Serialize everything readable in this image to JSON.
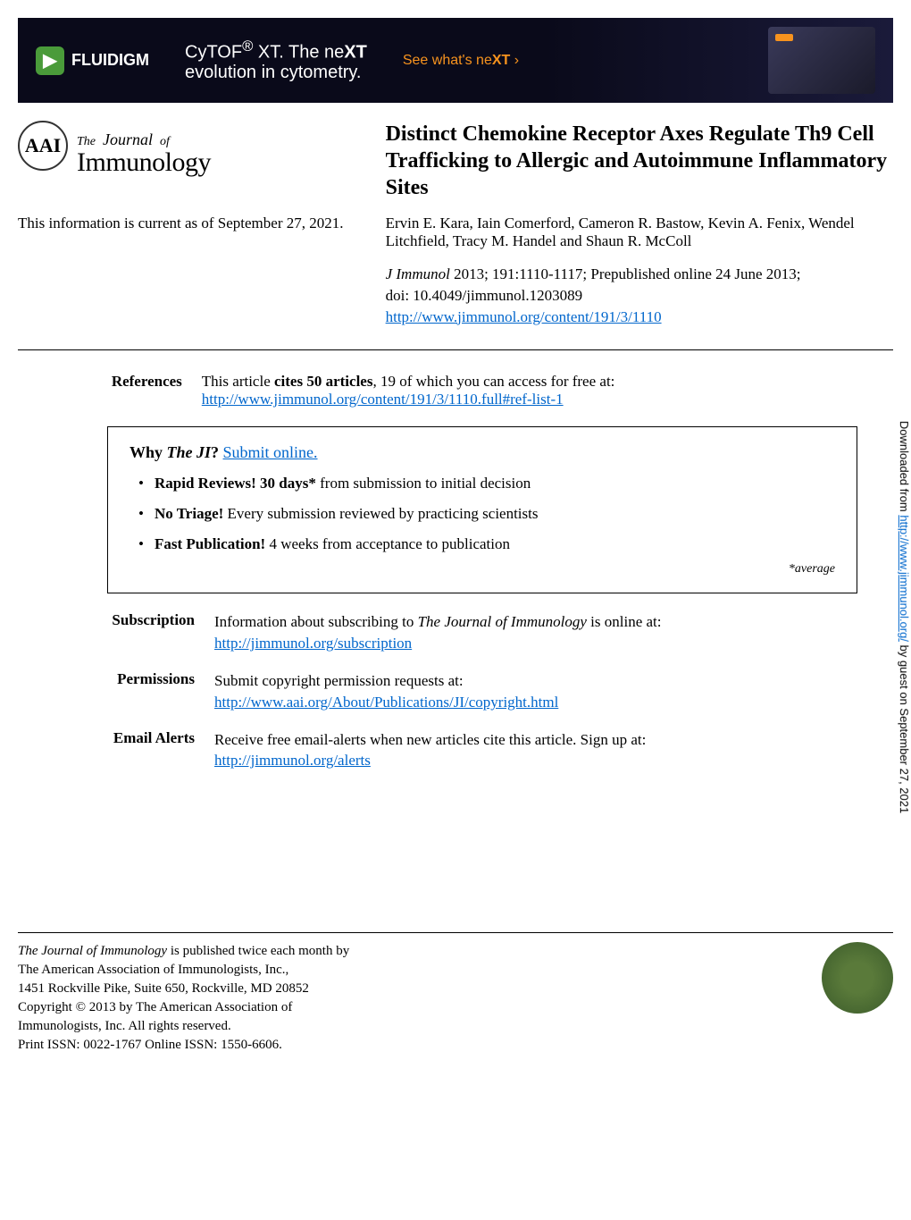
{
  "ad": {
    "logo_brand": "FLUIDIGM",
    "logo_icon": "▶",
    "line1_part1": "CyTOF",
    "line1_reg": "®",
    "line1_part2": " XT. The ne",
    "line1_bold": "XT",
    "line2": "evolution in cytometry.",
    "cta_text": "See what's ne",
    "cta_bold": "XT",
    "cta_arrow": " ›"
  },
  "journal": {
    "seal_initials": "AAI",
    "name_the": "The",
    "name_journal": "Journal",
    "name_of": "of",
    "name_main": "Immunology"
  },
  "article": {
    "title": "Distinct Chemokine Receptor Axes Regulate Th9 Cell Trafficking to Allergic and Autoimmune Inflammatory Sites",
    "currency_text": "This information is current as of September 27, 2021.",
    "authors": "Ervin E. Kara, Iain Comerford, Cameron R. Bastow, Kevin A. Fenix, Wendel Litchfield, Tracy M. Handel and Shaun R. McColl",
    "citation_journal": "J Immunol",
    "citation_rest": " 2013; 191:1110-1117; Prepublished online 24 June 2013;",
    "doi": "doi: 10.4049/jimmunol.1203089",
    "url": "http://www.jimmunol.org/content/191/3/1110"
  },
  "references": {
    "label": "References",
    "text_part1": "This article ",
    "text_bold": "cites 50 articles",
    "text_part2": ", 19 of which you can access for free at:",
    "url": "http://www.jimmunol.org/content/191/3/1110.full#ref-list-1"
  },
  "why_box": {
    "title_bold1": "Why ",
    "title_italic": "The JI",
    "title_bold2": "? ",
    "title_link": "Submit online.",
    "items": [
      {
        "bold": "Rapid Reviews! 30 days*",
        "rest": " from submission to initial decision"
      },
      {
        "bold": "No Triage!",
        "rest": " Every submission reviewed by practicing scientists"
      },
      {
        "bold": "Fast Publication!",
        "rest": " 4 weeks from acceptance to publication"
      }
    ],
    "footnote": "*average"
  },
  "info_sections": {
    "subscription": {
      "label": "Subscription",
      "text_part1": "Information about subscribing to ",
      "text_italic": "The Journal of Immunology",
      "text_part2": " is online at:",
      "url": "http://jimmunol.org/subscription"
    },
    "permissions": {
      "label": "Permissions",
      "text": "Submit copyright permission requests at:",
      "url": "http://www.aai.org/About/Publications/JI/copyright.html"
    },
    "email_alerts": {
      "label": "Email Alerts",
      "text": "Receive free email-alerts when new articles cite this article. Sign up at:",
      "url": "http://jimmunol.org/alerts"
    }
  },
  "footer": {
    "line1_italic": "The Journal of Immunology",
    "line1_rest": " is published twice each month by",
    "line2": "The American Association of Immunologists, Inc.,",
    "line3": "1451 Rockville Pike, Suite 650, Rockville, MD 20852",
    "line4": "Copyright © 2013 by The American Association of",
    "line5": "Immunologists, Inc. All rights reserved.",
    "line6": "Print ISSN: 0022-1767 Online ISSN: 1550-6606."
  },
  "side_text": {
    "part1": "Downloaded from ",
    "url": "http://www.jimmunol.org/",
    "part2": " by guest on September 27, 2021"
  },
  "colors": {
    "link": "#0066cc",
    "ad_bg": "#0a0a1a",
    "ad_accent": "#f7931e",
    "ad_green": "#4a9b3a",
    "text": "#000000",
    "seal_green": "#5a7a3a"
  }
}
